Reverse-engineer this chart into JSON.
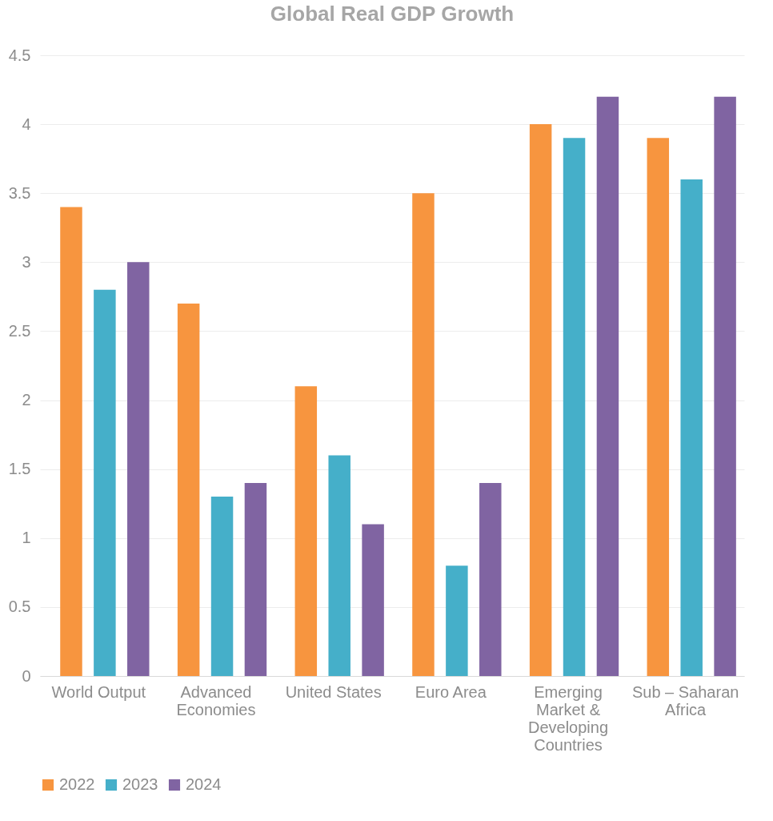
{
  "chart_data": {
    "type": "bar",
    "title": "Global Real GDP Growth",
    "categories": [
      "World Output",
      "Advanced Economies",
      "United States",
      "Euro Area",
      "Emerging Market & Developing Countries",
      "Sub – Saharan Africa"
    ],
    "series": [
      {
        "name": "2022",
        "color": "#f7953f",
        "values": [
          3.4,
          2.7,
          2.1,
          3.5,
          4.0,
          3.9
        ]
      },
      {
        "name": "2023",
        "color": "#45afc9",
        "values": [
          2.8,
          1.3,
          1.6,
          0.8,
          3.9,
          3.6
        ]
      },
      {
        "name": "2024",
        "color": "#8064a2",
        "values": [
          3.0,
          1.4,
          1.1,
          1.4,
          4.2,
          4.2
        ]
      }
    ],
    "ylim": [
      0,
      4.5
    ],
    "yticks": [
      0,
      0.5,
      1,
      1.5,
      2,
      2.5,
      3,
      3.5,
      4,
      4.5
    ],
    "grid": "y",
    "legend": "bottom"
  }
}
